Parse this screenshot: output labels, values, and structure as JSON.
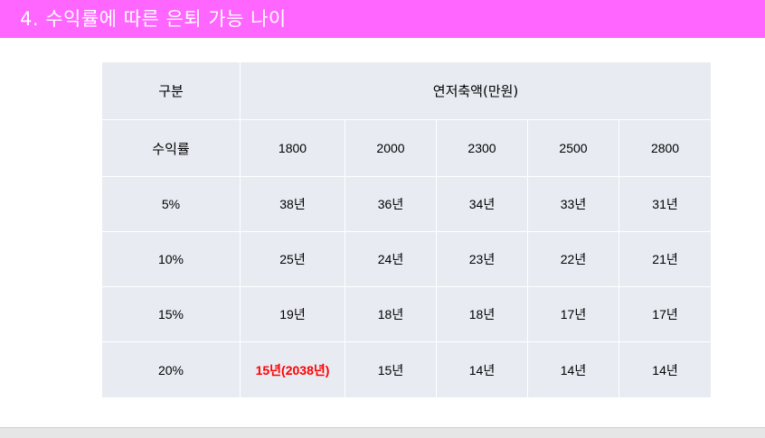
{
  "header": {
    "title": "4. 수익률에 따른 은퇴 가능 나이"
  },
  "table": {
    "col_header_label": "구분",
    "group_header": "연저축액(만원)",
    "rate_header": "수익률",
    "amounts": [
      "1800",
      "2000",
      "2300",
      "2500",
      "2800"
    ],
    "rows": [
      {
        "rate": "5%",
        "values": [
          "38년",
          "36년",
          "34년",
          "33년",
          "31년"
        ]
      },
      {
        "rate": "10%",
        "values": [
          "25년",
          "24년",
          "23년",
          "22년",
          "21년"
        ]
      },
      {
        "rate": "15%",
        "values": [
          "19년",
          "18년",
          "18년",
          "17년",
          "17년"
        ]
      },
      {
        "rate": "20%",
        "values": [
          "15년(2038년)",
          "15년",
          "14년",
          "14년",
          "14년"
        ]
      }
    ],
    "highlight_color": "#ff0000"
  },
  "colors": {
    "header_bg": "#ff66ff",
    "table_bg": "#e8ebf2"
  }
}
